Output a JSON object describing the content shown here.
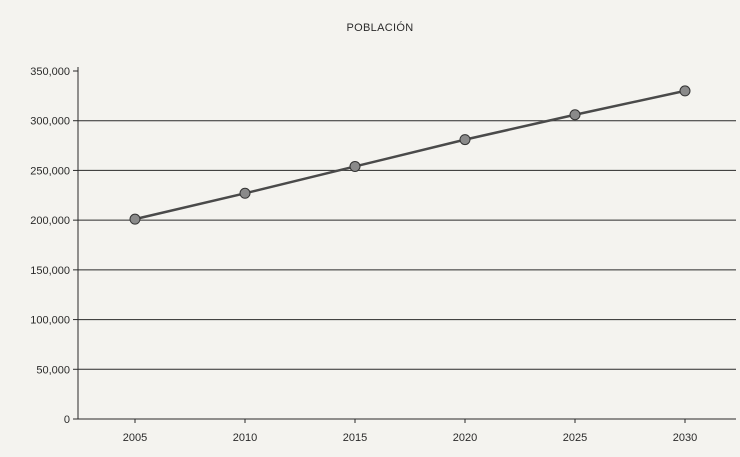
{
  "chart_data": {
    "type": "line",
    "title": "POBLACIÓN",
    "x": [
      "2005",
      "2010",
      "2015",
      "2020",
      "2025",
      "2030"
    ],
    "series": [
      {
        "values": [
          201000,
          227000,
          254000,
          281000,
          306000,
          330000
        ]
      }
    ],
    "ylim": [
      0,
      350000
    ],
    "yticks": [
      0,
      50000,
      100000,
      150000,
      200000,
      250000,
      300000,
      350000
    ],
    "ytick_labels": [
      "0",
      "50,000",
      "100,000",
      "150,000",
      "200,000",
      "250,000",
      "300,000",
      "350,000"
    ],
    "grid": true,
    "legend": "none",
    "colors": {
      "background": "#f4f3ef",
      "line": "#4a4a4a",
      "marker": "#8a8a8a",
      "gridline": "#2a2a2a"
    }
  }
}
